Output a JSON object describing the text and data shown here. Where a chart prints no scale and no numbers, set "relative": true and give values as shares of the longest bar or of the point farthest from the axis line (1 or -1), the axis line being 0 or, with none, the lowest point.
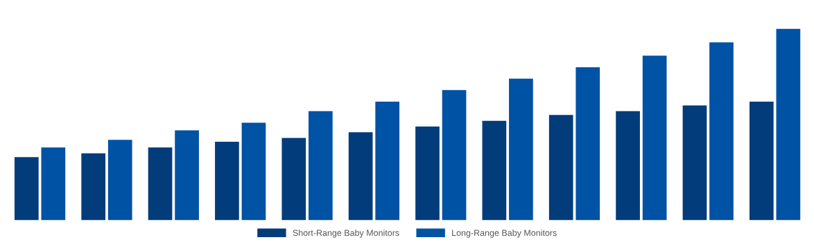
{
  "chart_data": {
    "type": "bar",
    "relative": true,
    "categories": [
      null,
      null,
      null,
      null,
      null,
      null,
      null,
      null,
      null,
      null,
      null,
      null
    ],
    "series": [
      {
        "name": "Short-Range Baby Monitors",
        "color": "#033c7a",
        "values": [
          0.33,
          0.35,
          0.38,
          0.41,
          0.43,
          0.46,
          0.49,
          0.52,
          0.55,
          0.57,
          0.6,
          0.62
        ]
      },
      {
        "name": "Long-Range Baby Monitors",
        "color": "#0052a5",
        "values": [
          0.38,
          0.42,
          0.47,
          0.51,
          0.57,
          0.62,
          0.68,
          0.74,
          0.8,
          0.86,
          0.93,
          1
        ]
      }
    ],
    "legend": "bottom",
    "grid": false
  }
}
